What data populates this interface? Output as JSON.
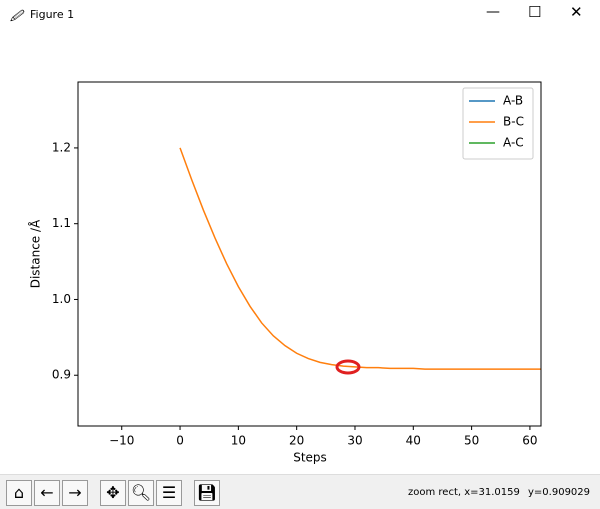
{
  "window": {
    "title": "Figure 1",
    "status_x": "zoom rect, x=31.0159",
    "status_y": "y=0.909029"
  },
  "chart_data": {
    "type": "line",
    "x_label": "Steps",
    "y_label": "Distance /Å",
    "x": [
      0,
      2,
      4,
      6,
      8,
      10,
      12,
      14,
      16,
      18,
      20,
      22,
      24,
      26,
      28,
      30,
      32,
      34,
      36,
      38,
      40,
      42,
      44,
      46,
      48,
      50,
      52,
      54,
      56,
      58,
      60,
      62
    ],
    "series": [
      {
        "name": "A-B",
        "color": "#1f77b4",
        "values": [
          null,
          null,
          null,
          null,
          null,
          null,
          null,
          null,
          null,
          null,
          null,
          null,
          null,
          null,
          null,
          null,
          null,
          null,
          null,
          null,
          null,
          null,
          null,
          null,
          null,
          null,
          null,
          null,
          null,
          null,
          null,
          null
        ]
      },
      {
        "name": "B-C",
        "color": "#ff7f0e",
        "values": [
          1.2,
          1.158,
          1.118,
          1.081,
          1.047,
          1.017,
          0.991,
          0.969,
          0.952,
          0.939,
          0.929,
          0.922,
          0.917,
          0.914,
          0.912,
          0.911,
          0.91,
          0.91,
          0.909,
          0.909,
          0.909,
          0.908,
          0.908,
          0.908,
          0.908,
          0.908,
          0.908,
          0.908,
          0.908,
          0.908,
          0.908,
          0.908
        ]
      },
      {
        "name": "A-C",
        "color": "#2ca02c",
        "values": [
          null,
          null,
          null,
          null,
          null,
          null,
          null,
          null,
          null,
          null,
          null,
          null,
          null,
          null,
          null,
          null,
          null,
          null,
          null,
          null,
          null,
          null,
          null,
          null,
          null,
          null,
          null,
          null,
          null,
          null,
          null,
          null
        ]
      }
    ],
    "xlim": [
      -17.5,
      61.9
    ],
    "ylim": [
      0.833,
      1.287
    ],
    "xticks": [
      {
        "value": -10,
        "label": "−10"
      },
      0,
      10,
      20,
      30,
      40,
      50,
      60
    ],
    "yticks": [
      0.9,
      {
        "value": 1,
        "label": "1.0"
      },
      1.1,
      1.2
    ],
    "legend": "upper-right"
  }
}
